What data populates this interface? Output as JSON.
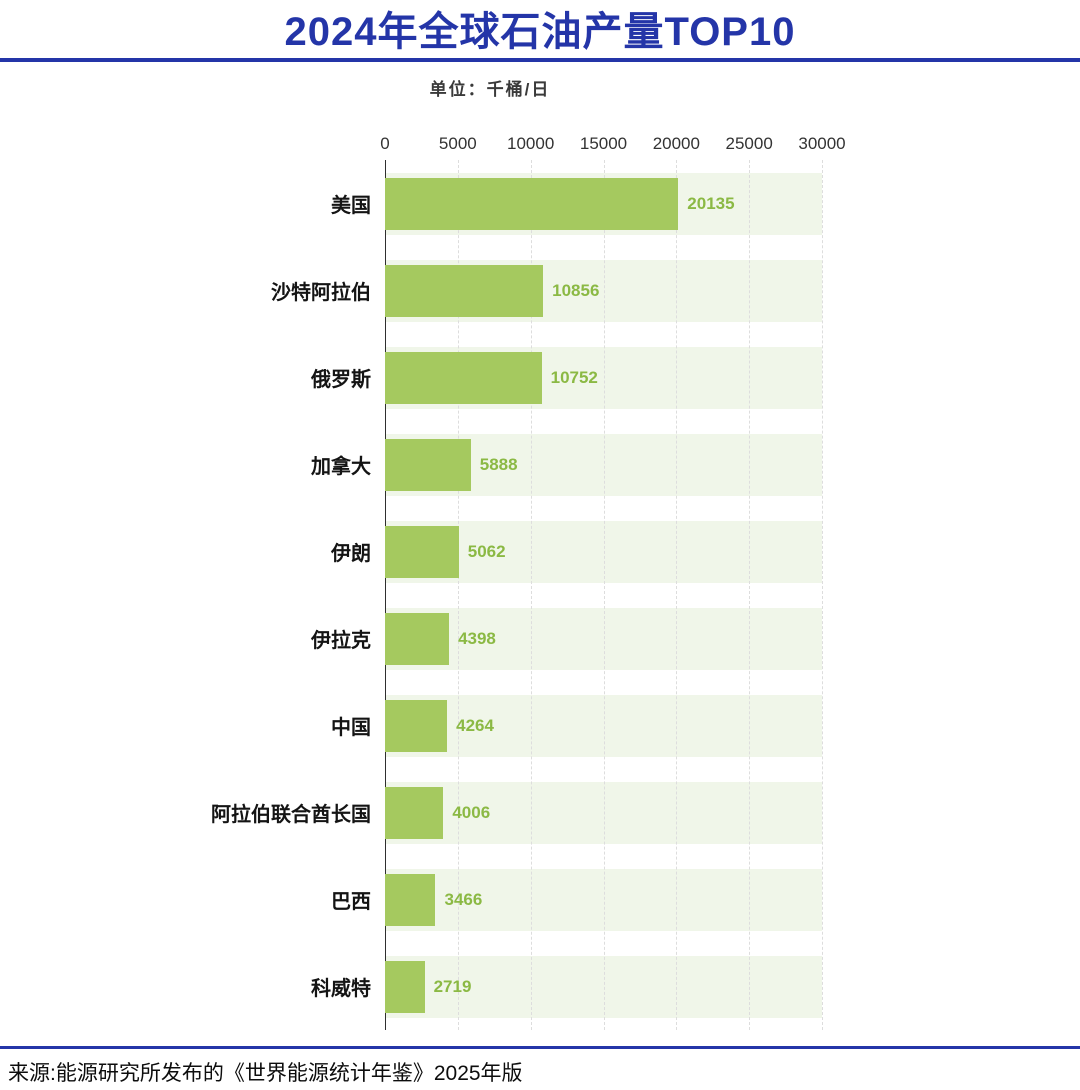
{
  "header": {
    "title": "2024年全球石油产量TOP10"
  },
  "chart": {
    "unit_label": "单位：千桶/日"
  },
  "chart_data": {
    "type": "bar",
    "orientation": "horizontal",
    "title": "2024年全球石油产量TOP10",
    "unit": "千桶/日",
    "categories": [
      "美国",
      "沙特阿拉伯",
      "俄罗斯",
      "加拿大",
      "伊朗",
      "伊拉克",
      "中国",
      "阿拉伯联合酋长国",
      "巴西",
      "科威特"
    ],
    "values": [
      20135,
      10856,
      10752,
      5888,
      5062,
      4398,
      4264,
      4006,
      3466,
      2719
    ],
    "xlim": [
      0,
      30000
    ],
    "x_ticks": [
      0,
      5000,
      10000,
      15000,
      20000,
      25000,
      30000
    ],
    "grid": "dashed-vertical",
    "legend": "none",
    "value_labels": "outside-end"
  },
  "footer": {
    "source": "来源:能源研究所发布的《世界能源统计年鉴》2025年版"
  },
  "colors": {
    "accent_blue": "#2435a8",
    "bar_green": "#a5c95f",
    "value_green": "#8bb944",
    "stripe_green": "#f0f6e9"
  }
}
